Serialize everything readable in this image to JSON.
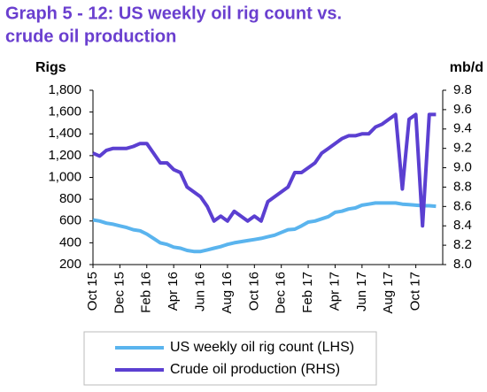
{
  "chart_data": {
    "type": "line",
    "title": [
      "Graph 5 - 12: US weekly oil rig count vs.",
      "crude oil production"
    ],
    "y_label": "Rigs",
    "y2_label": "mb/d",
    "categories": [
      "Oct 15",
      null,
      null,
      null,
      "Dec 15",
      null,
      null,
      null,
      "Feb 16",
      null,
      null,
      null,
      "Apr 16",
      null,
      null,
      null,
      "Jun 16",
      null,
      null,
      null,
      "Aug 16",
      null,
      null,
      null,
      "Oct 16",
      null,
      null,
      null,
      "Dec 16",
      null,
      null,
      null,
      "Feb 17",
      null,
      null,
      null,
      "Apr 17",
      null,
      null,
      null,
      "Jun 17",
      null,
      null,
      null,
      "Aug 17",
      null,
      null,
      null,
      "Oct 17",
      null,
      null,
      null
    ],
    "series": [
      {
        "name": "US weekly oil rig count (LHS)",
        "color": "#5ab4ee",
        "values": [
          610,
          600,
          580,
          570,
          555,
          540,
          520,
          510,
          480,
          440,
          400,
          385,
          360,
          350,
          330,
          320,
          320,
          335,
          350,
          365,
          385,
          400,
          410,
          420,
          430,
          440,
          455,
          470,
          495,
          520,
          525,
          555,
          590,
          600,
          620,
          640,
          680,
          690,
          710,
          720,
          745,
          755,
          765,
          765,
          765,
          765,
          755,
          750,
          745,
          740,
          740,
          735
        ]
      },
      {
        "name": "Crude oil production (RHS)",
        "color": "#5b3fd1",
        "axis": "y2",
        "values": [
          9.15,
          9.12,
          9.18,
          9.2,
          9.2,
          9.2,
          9.22,
          9.25,
          9.25,
          9.15,
          9.05,
          9.05,
          8.98,
          8.95,
          8.8,
          8.75,
          8.7,
          8.6,
          8.45,
          8.5,
          8.45,
          8.55,
          8.5,
          8.45,
          8.5,
          8.45,
          8.65,
          8.7,
          8.75,
          8.8,
          8.95,
          8.95,
          9.0,
          9.05,
          9.15,
          9.2,
          9.25,
          9.3,
          9.33,
          9.33,
          9.35,
          9.35,
          9.42,
          9.45,
          9.5,
          9.55,
          8.78,
          9.5,
          9.55,
          8.4,
          9.55,
          9.55
        ]
      }
    ],
    "ylim": [
      200,
      1800
    ],
    "yticks": [
      200,
      400,
      600,
      800,
      {
        "value": 1000,
        "label": "1,000"
      },
      {
        "value": 1200,
        "label": "1,200"
      },
      {
        "value": 1400,
        "label": "1,400"
      },
      {
        "value": 1600,
        "label": "1,600"
      },
      {
        "value": 1800,
        "label": "1,800"
      }
    ],
    "y2lim": [
      8.0,
      9.8
    ],
    "y2ticks": [
      {
        "value": 8,
        "label": "8.0"
      },
      8.2,
      8.4,
      8.6,
      8.8,
      {
        "value": 9,
        "label": "9.0"
      },
      9.2,
      9.4,
      9.6,
      9.8
    ]
  }
}
